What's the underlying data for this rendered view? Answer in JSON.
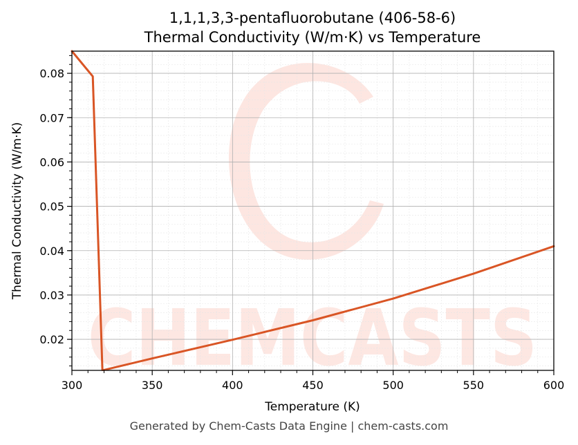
{
  "chart_data": {
    "type": "line",
    "title": "1,1,1,3,3-pentafluorobutane (406-58-6)",
    "subtitle": "Thermal Conductivity (W/m·K) vs Temperature",
    "xlabel": "Temperature (K)",
    "ylabel": "Thermal Conductivity (W/m·K)",
    "xlim": [
      300,
      600
    ],
    "ylim": [
      0.013,
      0.085
    ],
    "xticks": [
      300,
      350,
      400,
      450,
      500,
      550,
      600
    ],
    "yticks": [
      0.02,
      0.03,
      0.04,
      0.05,
      0.06,
      0.07,
      0.08
    ],
    "ytick_labels": [
      "0.02",
      "0.03",
      "0.04",
      "0.05",
      "0.06",
      "0.07",
      "0.08"
    ],
    "grid": true,
    "legend": "none",
    "series": [
      {
        "color": "#d95525",
        "x": [
          300,
          313,
          319,
          320,
          350,
          400,
          450,
          500,
          550,
          600
        ],
        "y": [
          0.085,
          0.0793,
          0.0131,
          0.0131,
          0.0157,
          0.0199,
          0.0243,
          0.0292,
          0.0348,
          0.041
        ]
      }
    ]
  },
  "watermark": {
    "text": "CHEMCASTS",
    "color": "#fde3de"
  },
  "footer": "Generated by Chem-Casts Data Engine | chem-casts.com"
}
